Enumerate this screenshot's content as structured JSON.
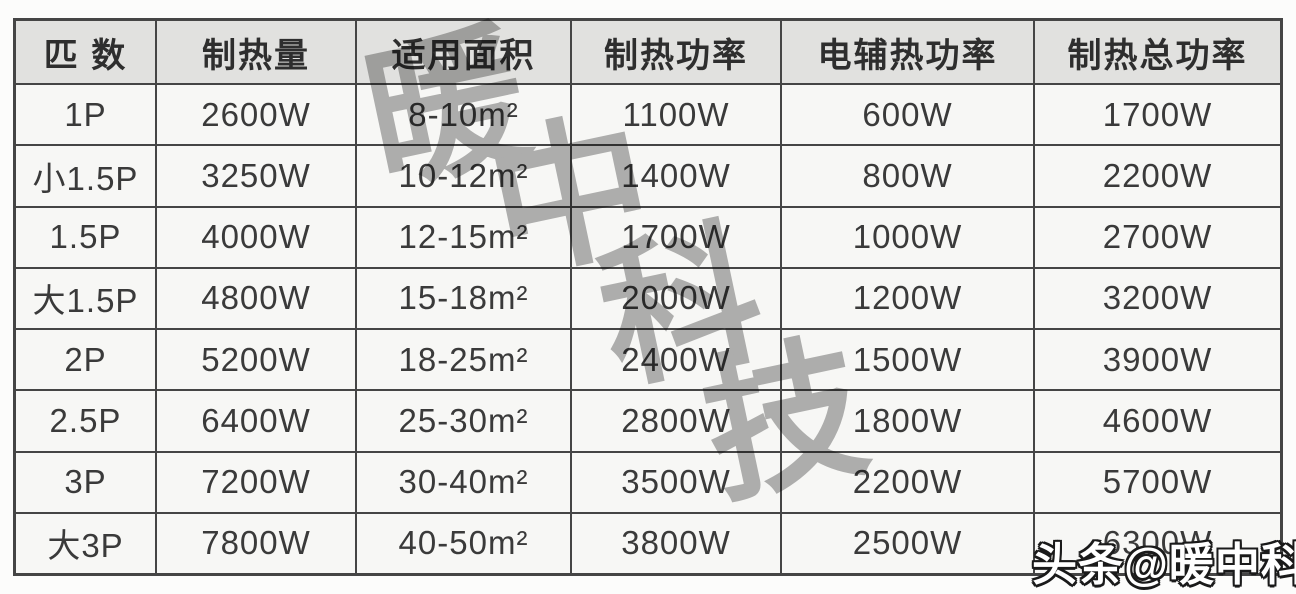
{
  "table": {
    "headers": [
      "匹 数",
      "制热量",
      "适用面积",
      "制热功率",
      "电辅热功率",
      "制热总功率"
    ],
    "rows": [
      [
        "1P",
        "2600W",
        "8-10m²",
        "1100W",
        "600W",
        "1700W"
      ],
      [
        "小1.5P",
        "3250W",
        "10-12m²",
        "1400W",
        "800W",
        "2200W"
      ],
      [
        "1.5P",
        "4000W",
        "12-15m²",
        "1700W",
        "1000W",
        "2700W"
      ],
      [
        "大1.5P",
        "4800W",
        "15-18m²",
        "2000W",
        "1200W",
        "3200W"
      ],
      [
        "2P",
        "5200W",
        "18-25m²",
        "2400W",
        "1500W",
        "3900W"
      ],
      [
        "2.5P",
        "6400W",
        "25-30m²",
        "2800W",
        "1800W",
        "4600W"
      ],
      [
        "3P",
        "7200W",
        "30-40m²",
        "3500W",
        "2200W",
        "5700W"
      ],
      [
        "大3P",
        "7800W",
        "40-50m²",
        "3800W",
        "2500W",
        "6300W"
      ]
    ]
  },
  "watermark": {
    "diagonal_chars": [
      "暖",
      "中",
      "科",
      "技"
    ],
    "corner_text": "头条@暖中科技"
  },
  "colors": {
    "header_bg": "#e1e1df",
    "cell_bg": "#f7f7f5",
    "border": "#454545",
    "text": "#3a3a3a",
    "watermark_gray": "#b3b3b3",
    "corner_watermark_fill": "#ffffff",
    "corner_watermark_outline": "#1a1a1a"
  }
}
